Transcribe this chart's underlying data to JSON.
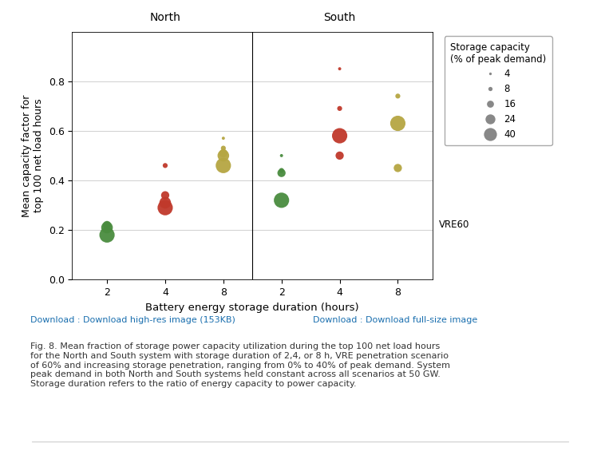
{
  "xlabel": "Battery energy storage duration (hours)",
  "ylabel": "Mean capacity factor for\ntop 100 net load hours",
  "ylim": [
    0.0,
    1.0
  ],
  "yticks": [
    0.0,
    0.2,
    0.4,
    0.6,
    0.8
  ],
  "north_label": "North",
  "south_label": "South",
  "vre_label": "VRE60",
  "legend_title": "Storage capacity\n(% of peak demand)",
  "legend_sizes": [
    4,
    8,
    16,
    24,
    40
  ],
  "colors": {
    "green": "#4a8c3f",
    "red": "#c0392b",
    "olive": "#b5a642"
  },
  "north": {
    "duration_2": {
      "green": [
        {
          "val": 0.18,
          "cap": 40
        },
        {
          "val": 0.21,
          "cap": 24
        },
        {
          "val": 0.22,
          "cap": 16
        }
      ]
    },
    "duration_4": {
      "red": [
        {
          "val": 0.29,
          "cap": 40
        },
        {
          "val": 0.31,
          "cap": 24
        },
        {
          "val": 0.34,
          "cap": 16
        },
        {
          "val": 0.46,
          "cap": 8
        }
      ]
    },
    "duration_8": {
      "olive": [
        {
          "val": 0.46,
          "cap": 40
        },
        {
          "val": 0.5,
          "cap": 24
        },
        {
          "val": 0.51,
          "cap": 16
        },
        {
          "val": 0.53,
          "cap": 8
        },
        {
          "val": 0.57,
          "cap": 4
        }
      ]
    }
  },
  "south": {
    "duration_2": {
      "green": [
        {
          "val": 0.32,
          "cap": 40
        },
        {
          "val": 0.43,
          "cap": 16
        },
        {
          "val": 0.44,
          "cap": 8
        },
        {
          "val": 0.5,
          "cap": 4
        }
      ]
    },
    "duration_4": {
      "red": [
        {
          "val": 0.5,
          "cap": 16
        },
        {
          "val": 0.58,
          "cap": 40
        },
        {
          "val": 0.69,
          "cap": 8
        },
        {
          "val": 0.85,
          "cap": 4
        }
      ]
    },
    "duration_8": {
      "olive": [
        {
          "val": 0.45,
          "cap": 16
        },
        {
          "val": 0.63,
          "cap": 40
        },
        {
          "val": 0.74,
          "cap": 8
        }
      ]
    }
  },
  "xtick_labels": [
    "2",
    "4",
    "8",
    "2",
    "4",
    "8"
  ],
  "background_color": "#ffffff",
  "grid_color": "#d0d0d0",
  "download_text1": "Download : Download high-res image (153KB)",
  "download_text2": "Download : Download full-size image",
  "caption": "Fig. 8. Mean fraction of storage power capacity utilization during the top 100 net load hours\nfor the North and South system with storage duration of 2,4, or 8 h, VRE penetration scenario\nof 60% and increasing storage penetration, ranging from 0% to 40% of peak demand. System\npeak demand in both North and South systems held constant across all scenarios at 50 GW.\nStorage duration refers to the ratio of energy capacity to power capacity."
}
